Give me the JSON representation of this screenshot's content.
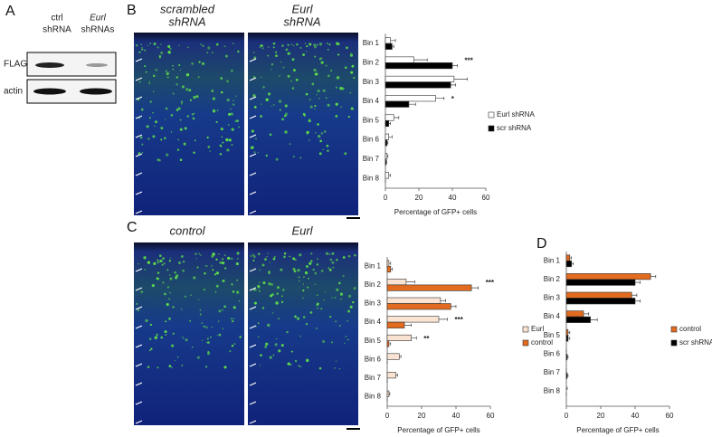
{
  "panels": {
    "A": {
      "label": "A",
      "columns": [
        [
          "ctrl",
          "shRNA"
        ],
        [
          "Eurl",
          "shRNAs"
        ]
      ],
      "rows": [
        "FLAG",
        "actin"
      ]
    },
    "B": {
      "label": "B",
      "images": [
        [
          "scrambled",
          "shRNA"
        ],
        [
          "Eurl",
          "shRNA"
        ]
      ]
    },
    "C": {
      "label": "C",
      "images": [
        [
          "control"
        ],
        [
          "Eurl"
        ]
      ]
    },
    "D": {
      "label": "D"
    }
  },
  "chart_data": [
    {
      "type": "bar",
      "orientation": "horizontal",
      "xlabel": "Percentage of GFP+ cells",
      "categories": [
        "Bin 1",
        "Bin 2",
        "Bin 3",
        "Bin 4",
        "Bin 5",
        "Bin 6",
        "Bin 7",
        "Bin 8"
      ],
      "series": [
        {
          "name": "Eurl shRNA",
          "color": "#ffffff",
          "values": [
            3,
            17,
            41,
            30,
            5,
            2,
            1,
            2
          ],
          "errors": [
            3,
            8,
            8,
            5,
            3,
            2,
            0.5,
            1
          ]
        },
        {
          "name": "scr shRNA",
          "color": "#000000",
          "values": [
            4,
            40,
            39,
            14,
            2,
            1,
            0.5,
            0
          ],
          "errors": [
            1,
            3,
            3,
            4,
            1,
            0.5,
            0.3,
            0
          ]
        }
      ],
      "significance": [
        null,
        "***",
        null,
        "*",
        null,
        null,
        null,
        null
      ],
      "xlim": [
        0,
        60
      ],
      "xticks": [
        0,
        20,
        40,
        60
      ]
    },
    {
      "type": "bar",
      "orientation": "horizontal",
      "xlabel": "Percentage of GFP+ cells",
      "categories": [
        "Bin 1",
        "Bin 2",
        "Bin 3",
        "Bin 4",
        "Bin 5",
        "Bin 6",
        "Bin 7",
        "Bin 8"
      ],
      "series": [
        {
          "name": "Eurl",
          "color": "#fbe3d3",
          "values": [
            1,
            11,
            31,
            30,
            14,
            7,
            5,
            1
          ],
          "errors": [
            1,
            5,
            3,
            5,
            3,
            1,
            1,
            0.5
          ]
        },
        {
          "name": "control",
          "color": "#e26b1f",
          "values": [
            2,
            49,
            37,
            10,
            1,
            0,
            0,
            0
          ],
          "errors": [
            1,
            4,
            3,
            4,
            1,
            0,
            0,
            0
          ]
        }
      ],
      "significance": [
        null,
        "***",
        null,
        "***",
        "**",
        null,
        null,
        null
      ],
      "xlim": [
        0,
        60
      ],
      "xticks": [
        0,
        20,
        40,
        60
      ]
    },
    {
      "type": "bar",
      "orientation": "horizontal",
      "xlabel": "Percentage of GFP+ cells",
      "categories": [
        "Bin 1",
        "Bin 2",
        "Bin 3",
        "Bin 4",
        "Bin 5",
        "Bin 6",
        "Bin 7",
        "Bin 8"
      ],
      "series": [
        {
          "name": "control",
          "color": "#e26b1f",
          "values": [
            2,
            49,
            38,
            10,
            1,
            0,
            0,
            0
          ],
          "errors": [
            1,
            3,
            3,
            3,
            1,
            0,
            0,
            0.5
          ]
        },
        {
          "name": "scr shRNA",
          "color": "#000000",
          "values": [
            3,
            40,
            40,
            14,
            1,
            0.5,
            0.5,
            0
          ],
          "errors": [
            1,
            3,
            3,
            4,
            1,
            0.5,
            0.5,
            0
          ]
        }
      ],
      "xlim": [
        0,
        60
      ],
      "xticks": [
        0,
        20,
        40,
        60
      ]
    }
  ]
}
